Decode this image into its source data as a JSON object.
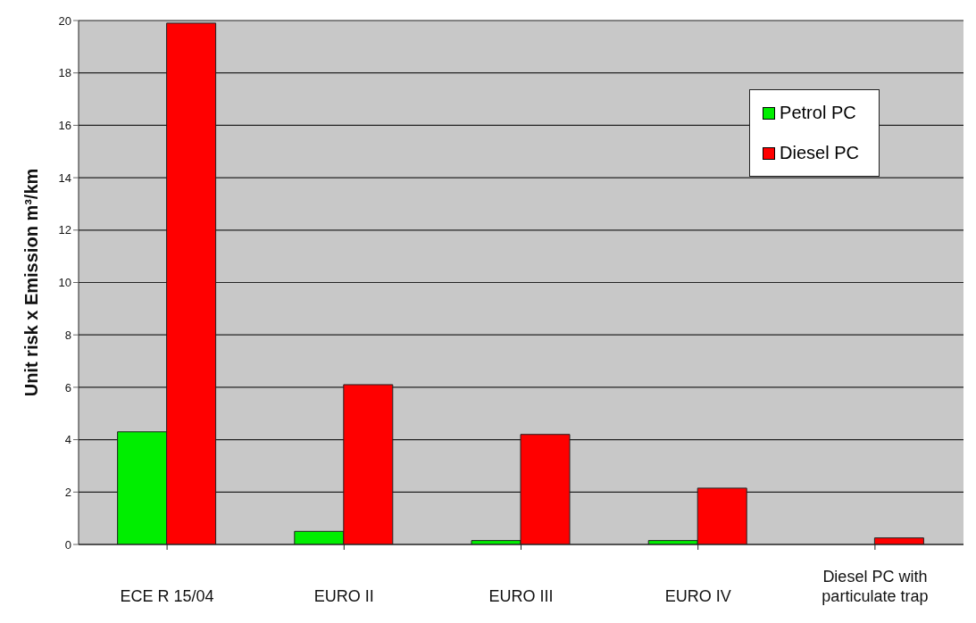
{
  "chart_data": {
    "type": "bar",
    "ylabel": "Unit risk x  Emission m³/km",
    "categories": [
      "ECE R 15/04",
      "EURO II",
      "EURO III",
      "EURO IV",
      "Diesel PC with particulate trap"
    ],
    "series": [
      {
        "name": "Petrol PC",
        "color": "#00ee00",
        "values": [
          4.3,
          0.5,
          0.15,
          0.15,
          null
        ]
      },
      {
        "name": "Diesel PC",
        "color": "#ff0000",
        "values": [
          19.9,
          6.1,
          4.2,
          2.15,
          0.25
        ]
      }
    ],
    "ylim": [
      0,
      20
    ],
    "yticks": [
      0,
      2,
      4,
      6,
      8,
      10,
      12,
      14,
      16,
      18,
      20
    ],
    "grid": "y",
    "legend": "top right"
  }
}
